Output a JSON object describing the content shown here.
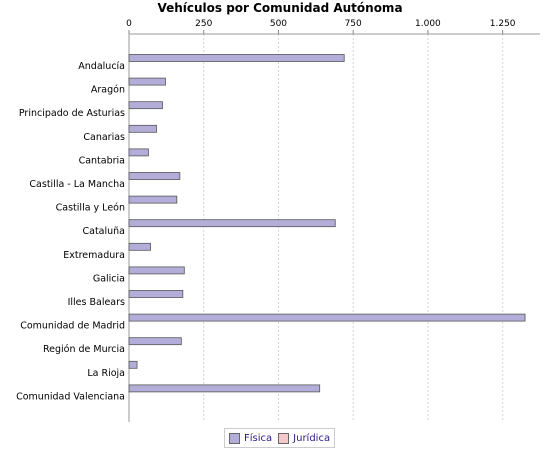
{
  "chart_data": {
    "type": "bar",
    "orientation": "horizontal",
    "title": "Vehículos por Comunidad Autónoma",
    "categories": [
      "Andalucía",
      "Aragón",
      "Principado de Asturias",
      "Canarias",
      "Cantabria",
      "Castilla - La Mancha",
      "Castilla y León",
      "Cataluña",
      "Extremadura",
      "Galicia",
      "Illes Balears",
      "Comunidad de Madrid",
      "Región de Murcia",
      "La Rioja",
      "Comunidad Valenciana"
    ],
    "series": [
      {
        "name": "Física",
        "color": "#b3aed9",
        "values": [
          720,
          122,
          112,
          92,
          65,
          170,
          160,
          690,
          72,
          185,
          180,
          1325,
          175,
          27,
          638
        ]
      },
      {
        "name": "Jurídica",
        "color": "#f4c9c9",
        "values": [
          0,
          0,
          0,
          0,
          0,
          0,
          0,
          0,
          0,
          0,
          0,
          0,
          0,
          0,
          0
        ]
      }
    ],
    "xlim": [
      0,
      1375
    ],
    "ticks": [
      0,
      250,
      500,
      750,
      1000,
      1250
    ],
    "tick_labels": [
      "0",
      "250",
      "500",
      "750",
      "1.000",
      "1.250"
    ],
    "axis_position": "top",
    "grid": true,
    "legend_position": "bottom"
  }
}
